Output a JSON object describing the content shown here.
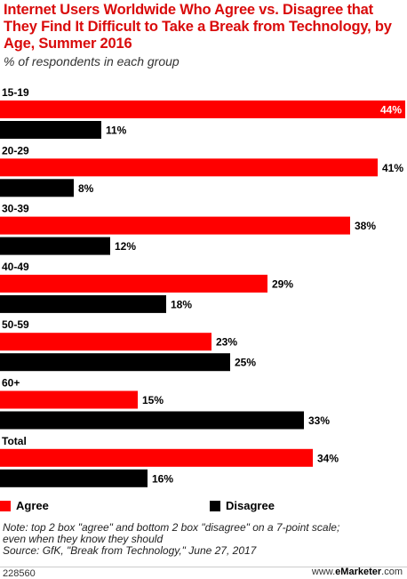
{
  "header": {
    "title": "Internet Users Worldwide Who Agree vs. Disagree that They Find It Difficult to Take a Break from Technology, by Age, Summer 2016",
    "subtitle": "% of respondents in each group"
  },
  "colors": {
    "agree": "#ff0000",
    "disagree": "#000000",
    "title": "#d90b0b"
  },
  "chart_data": {
    "type": "bar",
    "orientation": "horizontal",
    "title": "Internet Users Worldwide Who Agree vs. Disagree that They Find It Difficult to Take a Break from Technology, by Age, Summer 2016",
    "subtitle": "% of respondents in each group",
    "categories": [
      "15-19",
      "20-29",
      "30-39",
      "40-49",
      "50-59",
      "60+",
      "Total"
    ],
    "series": [
      {
        "name": "Agree",
        "values": [
          44,
          41,
          38,
          29,
          23,
          15,
          34
        ],
        "labels": [
          "44%",
          "41%",
          "38%",
          "29%",
          "23%",
          "15%",
          "34%"
        ]
      },
      {
        "name": "Disagree",
        "values": [
          11,
          8,
          12,
          18,
          25,
          33,
          16
        ],
        "labels": [
          "11%",
          "8%",
          "12%",
          "18%",
          "25%",
          "33%",
          "16%"
        ]
      }
    ],
    "xlim": [
      0,
      44
    ],
    "grid": false,
    "legend": "bottom-left"
  },
  "legend": {
    "agree_label": "Agree",
    "disagree_label": "Disagree"
  },
  "notes": {
    "line1": "Note: top 2 box \"agree\" and bottom 2 box \"disagree\" on a 7-point scale;",
    "line2": "even when they know they should",
    "line3": "Source: GfK, \"Break from Technology,\" June 27, 2017"
  },
  "footer": {
    "id": "228560",
    "brand_prefix": "www.",
    "brand_name": "eMarketer",
    "brand_suffix": ".com"
  }
}
